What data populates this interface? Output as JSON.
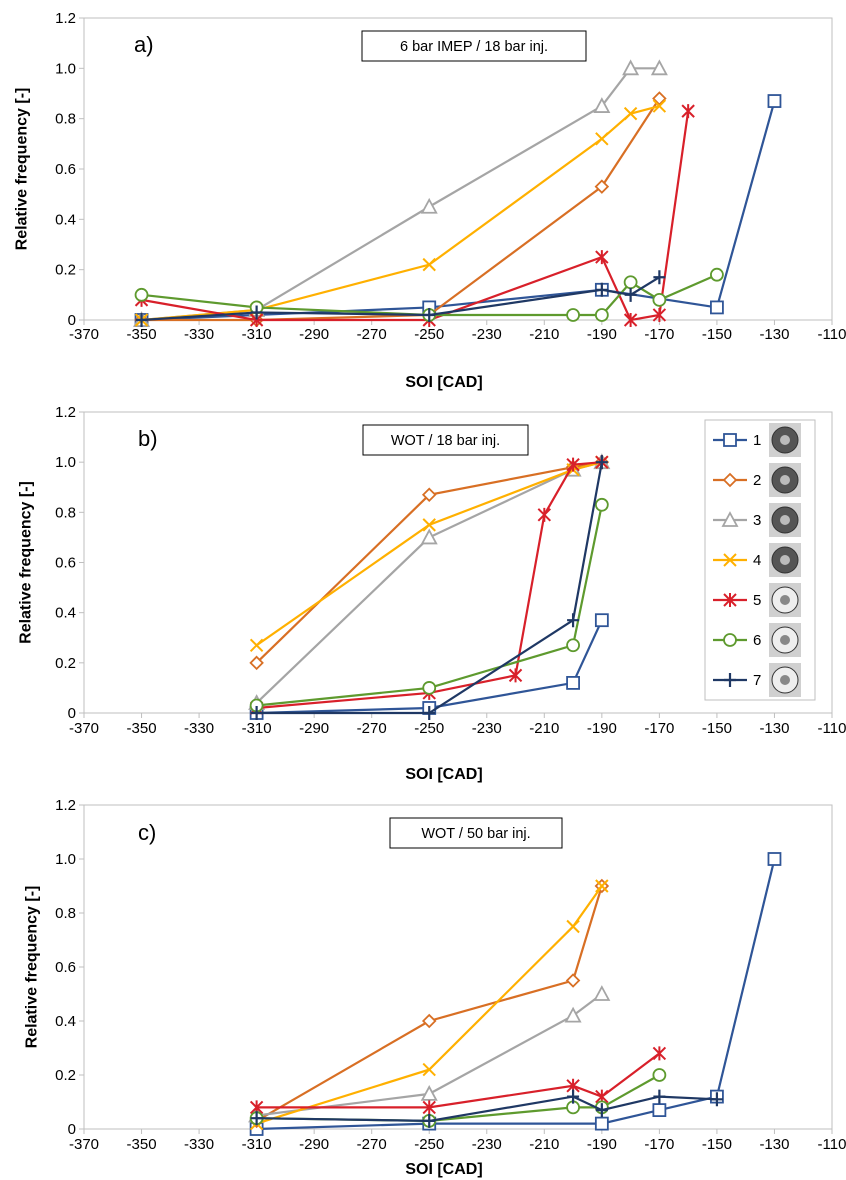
{
  "chart_data": [
    {
      "type": "line",
      "panel_label": "a)",
      "annotation": "6 bar IMEP / 18 bar inj.",
      "xlabel": "SOI [CAD]",
      "ylabel": "Relative frequency [-]",
      "xlim": [
        -370,
        -110
      ],
      "ylim": [
        0,
        1.2
      ],
      "xticks": [
        "-370",
        "-350",
        "-330",
        "-310",
        "-290",
        "-270",
        "-250",
        "-230",
        "-210",
        "-190",
        "-170",
        "-150",
        "-130",
        "-110"
      ],
      "yticks": [
        "0",
        "0.2",
        "0.4",
        "0.6",
        "0.8",
        "1.0",
        "1.2"
      ],
      "series": [
        {
          "name": "1",
          "x": [
            -350,
            -250,
            -190,
            -150,
            -130
          ],
          "y": [
            0.0,
            0.05,
            0.12,
            0.05,
            0.87
          ]
        },
        {
          "name": "2",
          "x": [
            -350,
            -310,
            -250,
            -190,
            -170
          ],
          "y": [
            0.0,
            0.0,
            0.02,
            0.53,
            0.88
          ]
        },
        {
          "name": "3",
          "x": [
            -350,
            -310,
            -250,
            -190,
            -180,
            -170
          ],
          "y": [
            0.0,
            0.04,
            0.45,
            0.85,
            1.0,
            1.0
          ]
        },
        {
          "name": "4",
          "x": [
            -350,
            -310,
            -250,
            -190,
            -180,
            -170
          ],
          "y": [
            0.0,
            0.04,
            0.22,
            0.72,
            0.82,
            0.85
          ]
        },
        {
          "name": "5",
          "x": [
            -350,
            -310,
            -250,
            -190,
            -180,
            -170,
            -160
          ],
          "y": [
            0.08,
            0.0,
            0.0,
            0.25,
            0.0,
            0.02,
            0.83
          ]
        },
        {
          "name": "6",
          "x": [
            -350,
            -310,
            -250,
            -200,
            -190,
            -180,
            -170,
            -150
          ],
          "y": [
            0.1,
            0.05,
            0.02,
            0.02,
            0.02,
            0.15,
            0.08,
            0.18
          ]
        },
        {
          "name": "7",
          "x": [
            -350,
            -310,
            -250,
            -190,
            -180,
            -170
          ],
          "y": [
            0.0,
            0.03,
            0.02,
            0.12,
            0.1,
            0.17
          ]
        }
      ]
    },
    {
      "type": "line",
      "panel_label": "b)",
      "annotation": "WOT / 18 bar inj.",
      "xlabel": "SOI [CAD]",
      "ylabel": "Relative frequency [-]",
      "xlim": [
        -370,
        -110
      ],
      "ylim": [
        0,
        1.2
      ],
      "xticks": [
        "-370",
        "-350",
        "-330",
        "-310",
        "-290",
        "-270",
        "-250",
        "-230",
        "-210",
        "-190",
        "-170",
        "-150",
        "-130",
        "-110"
      ],
      "yticks": [
        "0",
        "0.2",
        "0.4",
        "0.6",
        "0.8",
        "1.0",
        "1.2"
      ],
      "legend": {
        "placement": "right",
        "entries": [
          "1",
          "2",
          "3",
          "4",
          "5",
          "6",
          "7"
        ]
      },
      "series": [
        {
          "name": "1",
          "x": [
            -310,
            -250,
            -200,
            -190
          ],
          "y": [
            0.0,
            0.02,
            0.12,
            0.37
          ]
        },
        {
          "name": "2",
          "x": [
            -310,
            -250,
            -200,
            -190
          ],
          "y": [
            0.2,
            0.87,
            0.98,
            1.0
          ]
        },
        {
          "name": "3",
          "x": [
            -310,
            -250,
            -200,
            -190
          ],
          "y": [
            0.04,
            0.7,
            0.97,
            1.0
          ]
        },
        {
          "name": "4",
          "x": [
            -310,
            -250,
            -200,
            -190
          ],
          "y": [
            0.27,
            0.75,
            0.97,
            1.0
          ]
        },
        {
          "name": "5",
          "x": [
            -310,
            -250,
            -220,
            -210,
            -200,
            -190
          ],
          "y": [
            0.02,
            0.08,
            0.15,
            0.79,
            0.99,
            1.0
          ]
        },
        {
          "name": "6",
          "x": [
            -310,
            -250,
            -200,
            -190
          ],
          "y": [
            0.03,
            0.1,
            0.27,
            0.83
          ]
        },
        {
          "name": "7",
          "x": [
            -310,
            -250,
            -200,
            -190
          ],
          "y": [
            0.0,
            0.0,
            0.37,
            1.0
          ]
        }
      ]
    },
    {
      "type": "line",
      "panel_label": "c)",
      "annotation": "WOT / 50 bar inj.",
      "xlabel": "SOI [CAD]",
      "ylabel": "Relative frequency [-]",
      "xlim": [
        -370,
        -110
      ],
      "ylim": [
        0,
        1.2
      ],
      "xticks": [
        "-370",
        "-350",
        "-330",
        "-310",
        "-290",
        "-270",
        "-250",
        "-230",
        "-210",
        "-190",
        "-170",
        "-150",
        "-130",
        "-110"
      ],
      "yticks": [
        "0",
        "0.2",
        "0.4",
        "0.6",
        "0.8",
        "1.0",
        "1.2"
      ],
      "series": [
        {
          "name": "1",
          "x": [
            -310,
            -250,
            -190,
            -170,
            -150,
            -130
          ],
          "y": [
            0.0,
            0.02,
            0.02,
            0.07,
            0.12,
            1.0
          ]
        },
        {
          "name": "2",
          "x": [
            -310,
            -250,
            -200,
            -190
          ],
          "y": [
            0.03,
            0.4,
            0.55,
            0.9
          ]
        },
        {
          "name": "3",
          "x": [
            -310,
            -250,
            -200,
            -190
          ],
          "y": [
            0.05,
            0.13,
            0.42,
            0.5
          ]
        },
        {
          "name": "4",
          "x": [
            -310,
            -250,
            -200,
            -190
          ],
          "y": [
            0.02,
            0.22,
            0.75,
            0.9
          ]
        },
        {
          "name": "5",
          "x": [
            -310,
            -250,
            -200,
            -190,
            -170
          ],
          "y": [
            0.08,
            0.08,
            0.16,
            0.12,
            0.28
          ]
        },
        {
          "name": "6",
          "x": [
            -310,
            -250,
            -200,
            -190,
            -170
          ],
          "y": [
            0.04,
            0.03,
            0.08,
            0.08,
            0.2
          ]
        },
        {
          "name": "7",
          "x": [
            -310,
            -250,
            -200,
            -190,
            -170,
            -150
          ],
          "y": [
            0.04,
            0.03,
            0.12,
            0.07,
            0.12,
            0.11
          ]
        }
      ]
    }
  ],
  "series_styles": [
    {
      "name": "1",
      "color": "#2F5597",
      "marker": "square"
    },
    {
      "name": "2",
      "color": "#D86F24",
      "marker": "diamond"
    },
    {
      "name": "3",
      "color": "#A5A5A5",
      "marker": "triangle"
    },
    {
      "name": "4",
      "color": "#FFB000",
      "marker": "x"
    },
    {
      "name": "5",
      "color": "#D8202A",
      "marker": "star"
    },
    {
      "name": "6",
      "color": "#5E9A2E",
      "marker": "circle"
    },
    {
      "name": "7",
      "color": "#1F3864",
      "marker": "plus"
    }
  ]
}
